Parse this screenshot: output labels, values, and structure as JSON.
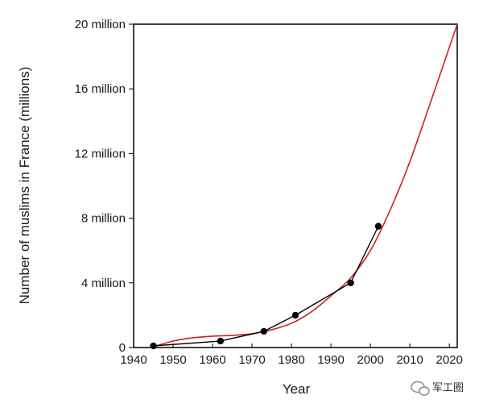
{
  "chart_data": {
    "type": "line",
    "title": "",
    "xlabel": "Year",
    "ylabel": "Number of muslims in France (millions)",
    "xlim": [
      1940,
      2022
    ],
    "ylim": [
      0,
      20
    ],
    "x_ticks": [
      {
        "value": 1940,
        "label": "1940"
      },
      {
        "value": 1950,
        "label": "1950"
      },
      {
        "value": 1960,
        "label": "1960"
      },
      {
        "value": 1970,
        "label": "1970"
      },
      {
        "value": 1980,
        "label": "1980"
      },
      {
        "value": 1990,
        "label": "1990"
      },
      {
        "value": 2000,
        "label": "2000"
      },
      {
        "value": 2010,
        "label": "2010"
      },
      {
        "value": 2020,
        "label": "2020"
      }
    ],
    "y_ticks": [
      {
        "value": 0,
        "label": "0"
      },
      {
        "value": 4,
        "label": "4 million"
      },
      {
        "value": 8,
        "label": "8 million"
      },
      {
        "value": 12,
        "label": "12 million"
      },
      {
        "value": 16,
        "label": "16 million"
      },
      {
        "value": 20,
        "label": "20 million"
      }
    ],
    "grid": false,
    "series": [
      {
        "kind": "observed",
        "color": "#000000",
        "markers": true,
        "x": [
          1945,
          1962,
          1973,
          1981,
          1995,
          2002
        ],
        "y": [
          0.1,
          0.4,
          1.0,
          2.0,
          4.0,
          7.5
        ]
      },
      {
        "kind": "fitted-curve",
        "color": "#cc2222",
        "markers": false,
        "x": [
          1945,
          1950,
          1955,
          1960,
          1965,
          1970,
          1973,
          1975,
          1980,
          1985,
          1990,
          1995,
          2000,
          2005,
          2010,
          2015,
          2022
        ],
        "y": [
          0.05,
          0.4,
          0.6,
          0.7,
          0.75,
          0.85,
          1.0,
          1.1,
          1.5,
          2.2,
          3.2,
          4.3,
          6.0,
          8.5,
          11.5,
          15.0,
          20.0
        ]
      }
    ]
  },
  "watermark": {
    "text": "军工圈",
    "icon": "wechat-icon"
  }
}
